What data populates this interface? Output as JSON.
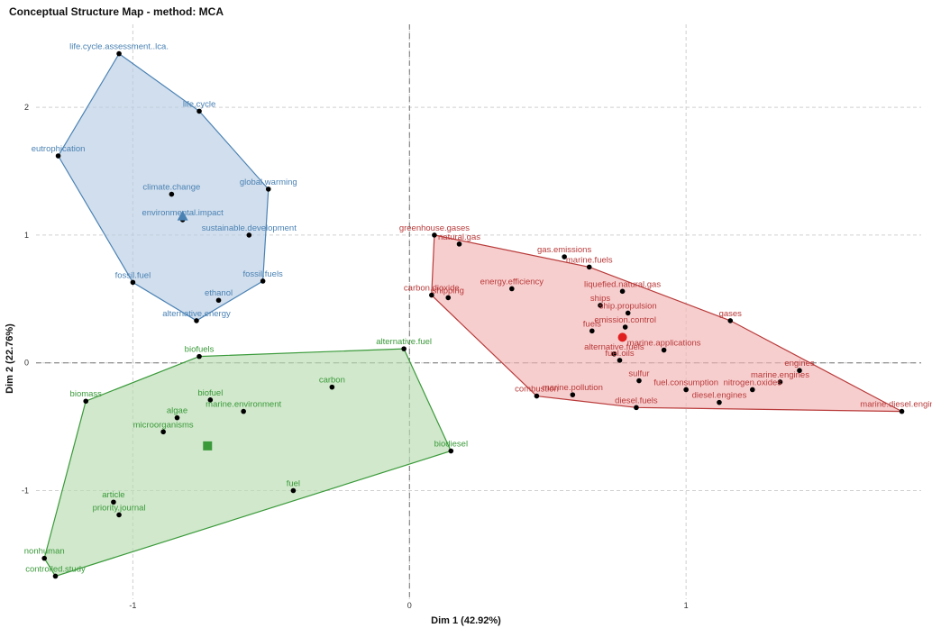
{
  "chart_data": {
    "type": "scatter",
    "title": "Conceptual Structure Map - method: MCA",
    "xlabel": "Dim 1 (42.92%)",
    "ylabel": "Dim 2 (22.76%)",
    "xlim": [
      -1.35,
      1.85
    ],
    "ylim": [
      -1.85,
      2.65
    ],
    "xticks": [
      -1,
      0,
      1
    ],
    "yticks": [
      -1,
      0,
      1,
      2
    ],
    "grid": true,
    "clusters": [
      {
        "color": "#4a82b4",
        "fill": "#b9cde3",
        "centroid": [
          -0.82,
          1.15
        ],
        "centroid_shape": "triangle",
        "hull": [
          [
            -1.05,
            2.42
          ],
          [
            -0.76,
            1.97
          ],
          [
            -0.51,
            1.36
          ],
          [
            -0.53,
            0.64
          ],
          [
            -0.77,
            0.33
          ],
          [
            -1.0,
            0.63
          ],
          [
            -1.27,
            1.62
          ]
        ],
        "points": [
          {
            "label": "life.cycle.assessment..lca.",
            "x": -1.05,
            "y": 2.42
          },
          {
            "label": "life.cycle",
            "x": -0.76,
            "y": 1.97
          },
          {
            "label": "eutrophication",
            "x": -1.27,
            "y": 1.62
          },
          {
            "label": "global.warming",
            "x": -0.51,
            "y": 1.36
          },
          {
            "label": "climate.change",
            "x": -0.86,
            "y": 1.32
          },
          {
            "label": "environmental.impact",
            "x": -0.82,
            "y": 1.12
          },
          {
            "label": "sustainable.development",
            "x": -0.58,
            "y": 1.0
          },
          {
            "label": "fossil.fuels",
            "x": -0.53,
            "y": 0.64
          },
          {
            "label": "fossil.fuel",
            "x": -1.0,
            "y": 0.63
          },
          {
            "label": "ethanol",
            "x": -0.69,
            "y": 0.49
          },
          {
            "label": "alternative.energy",
            "x": -0.77,
            "y": 0.33
          }
        ]
      },
      {
        "color": "#3a9a3a",
        "fill": "#b8dcb0",
        "centroid": [
          -0.73,
          -0.65
        ],
        "centroid_shape": "square",
        "hull": [
          [
            -0.76,
            0.05
          ],
          [
            -0.02,
            0.11
          ],
          [
            0.15,
            -0.69
          ],
          [
            -1.28,
            -1.67
          ],
          [
            -1.32,
            -1.53
          ],
          [
            -1.17,
            -0.3
          ]
        ],
        "points": [
          {
            "label": "alternative.fuel",
            "x": -0.02,
            "y": 0.11
          },
          {
            "label": "biofuels",
            "x": -0.76,
            "y": 0.05
          },
          {
            "label": "carbon",
            "x": -0.28,
            "y": -0.19
          },
          {
            "label": "biomass",
            "x": -1.17,
            "y": -0.3
          },
          {
            "label": "biofuel",
            "x": -0.72,
            "y": -0.29
          },
          {
            "label": "marine.environment",
            "x": -0.6,
            "y": -0.38
          },
          {
            "label": "algae",
            "x": -0.84,
            "y": -0.43
          },
          {
            "label": "microorganisms",
            "x": -0.89,
            "y": -0.54
          },
          {
            "label": "biodiesel",
            "x": 0.15,
            "y": -0.69
          },
          {
            "label": "fuel",
            "x": -0.42,
            "y": -1.0
          },
          {
            "label": "article",
            "x": -1.07,
            "y": -1.09
          },
          {
            "label": "priority.journal",
            "x": -1.05,
            "y": -1.19
          },
          {
            "label": "nonhuman",
            "x": -1.32,
            "y": -1.53
          },
          {
            "label": "controlled.study",
            "x": -1.28,
            "y": -1.67
          }
        ]
      },
      {
        "color": "#b93a3a",
        "fill": "#f2b3b4",
        "centroid": [
          0.77,
          0.2
        ],
        "centroid_shape": "circle",
        "hull": [
          [
            0.09,
            1.0
          ],
          [
            0.65,
            0.75
          ],
          [
            1.16,
            0.33
          ],
          [
            1.78,
            -0.38
          ],
          [
            0.82,
            -0.35
          ],
          [
            0.46,
            -0.26
          ],
          [
            0.08,
            0.53
          ]
        ],
        "points": [
          {
            "label": "greenhouse.gases",
            "x": 0.09,
            "y": 1.0
          },
          {
            "label": "natural.gas",
            "x": 0.18,
            "y": 0.93
          },
          {
            "label": "gas.emissions",
            "x": 0.56,
            "y": 0.83
          },
          {
            "label": "marine.fuels",
            "x": 0.65,
            "y": 0.75
          },
          {
            "label": "energy.efficiency",
            "x": 0.37,
            "y": 0.58
          },
          {
            "label": "liquefied.natural.gas",
            "x": 0.77,
            "y": 0.56
          },
          {
            "label": "carbon.dioxide",
            "x": 0.08,
            "y": 0.53
          },
          {
            "label": "shipping",
            "x": 0.14,
            "y": 0.51
          },
          {
            "label": "ships",
            "x": 0.69,
            "y": 0.45
          },
          {
            "label": "ship.propulsion",
            "x": 0.79,
            "y": 0.39
          },
          {
            "label": "gases",
            "x": 1.16,
            "y": 0.33
          },
          {
            "label": "emission.control",
            "x": 0.78,
            "y": 0.28
          },
          {
            "label": "fuels",
            "x": 0.66,
            "y": 0.25
          },
          {
            "label": "marine.applications",
            "x": 0.92,
            "y": 0.1
          },
          {
            "label": "alternative.fuels",
            "x": 0.74,
            "y": 0.07
          },
          {
            "label": "fuel.oils",
            "x": 0.76,
            "y": 0.02
          },
          {
            "label": "engines",
            "x": 1.41,
            "y": -0.06
          },
          {
            "label": "sulfur",
            "x": 0.83,
            "y": -0.14
          },
          {
            "label": "marine.engines",
            "x": 1.34,
            "y": -0.15
          },
          {
            "label": "nitrogen.oxides",
            "x": 1.24,
            "y": -0.21
          },
          {
            "label": "fuel.consumption",
            "x": 1.0,
            "y": -0.21
          },
          {
            "label": "combustion",
            "x": 0.46,
            "y": -0.26
          },
          {
            "label": "marine.pollution",
            "x": 0.59,
            "y": -0.25
          },
          {
            "label": "diesel.engines",
            "x": 1.12,
            "y": -0.31
          },
          {
            "label": "diesel.fuels",
            "x": 0.82,
            "y": -0.35
          },
          {
            "label": "marine.diesel.engines",
            "x": 1.78,
            "y": -0.38
          }
        ]
      }
    ]
  }
}
